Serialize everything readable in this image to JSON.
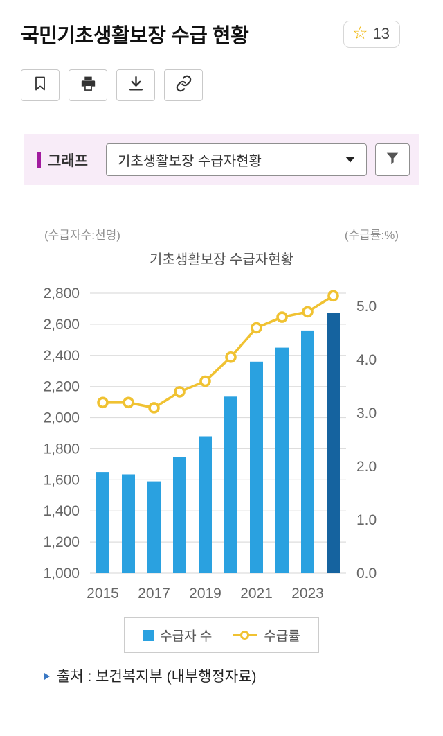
{
  "header": {
    "title": "국민기초생활보장 수급 현황",
    "favorite_count": "13"
  },
  "toolbar": {
    "icons": [
      "bookmark-icon",
      "print-icon",
      "download-icon",
      "link-icon"
    ]
  },
  "graph_panel": {
    "label": "그래프",
    "select_value": "기초생활보장 수급자현황",
    "accent_color": "#a21b9f",
    "panel_bg": "#f8ecf8"
  },
  "chart_data": {
    "type": "combo-bar-line",
    "title": "기초생활보장 수급자현황",
    "left_unit": "(수급자수:천명)",
    "right_unit": "(수급률:%)",
    "x": [
      2015,
      2016,
      2017,
      2018,
      2019,
      2020,
      2021,
      2022,
      2023,
      2024
    ],
    "x_tick_labels": [
      "2015",
      "2017",
      "2019",
      "2021",
      "2023"
    ],
    "series": [
      {
        "name": "수급자 수",
        "type": "bar",
        "values": [
          1650,
          1635,
          1590,
          1745,
          1880,
          2135,
          2360,
          2450,
          2560,
          2675
        ],
        "color": "#2aa1e0",
        "last_color": "#15639f"
      },
      {
        "name": "수급률",
        "type": "line",
        "values": [
          3.2,
          3.2,
          3.1,
          3.4,
          3.6,
          4.05,
          4.6,
          4.8,
          4.9,
          5.2
        ],
        "color": "#f0c232"
      }
    ],
    "left_axis": {
      "min": 1000,
      "max": 2800,
      "step": 200
    },
    "right_axis": {
      "min": 0,
      "max": 5.25,
      "tick_step": 1.0,
      "tick_max": 5.0
    },
    "grid": true,
    "legend_position": "bottom"
  },
  "source": {
    "text": "출처 : 보건복지부 (내부행정자료)"
  }
}
